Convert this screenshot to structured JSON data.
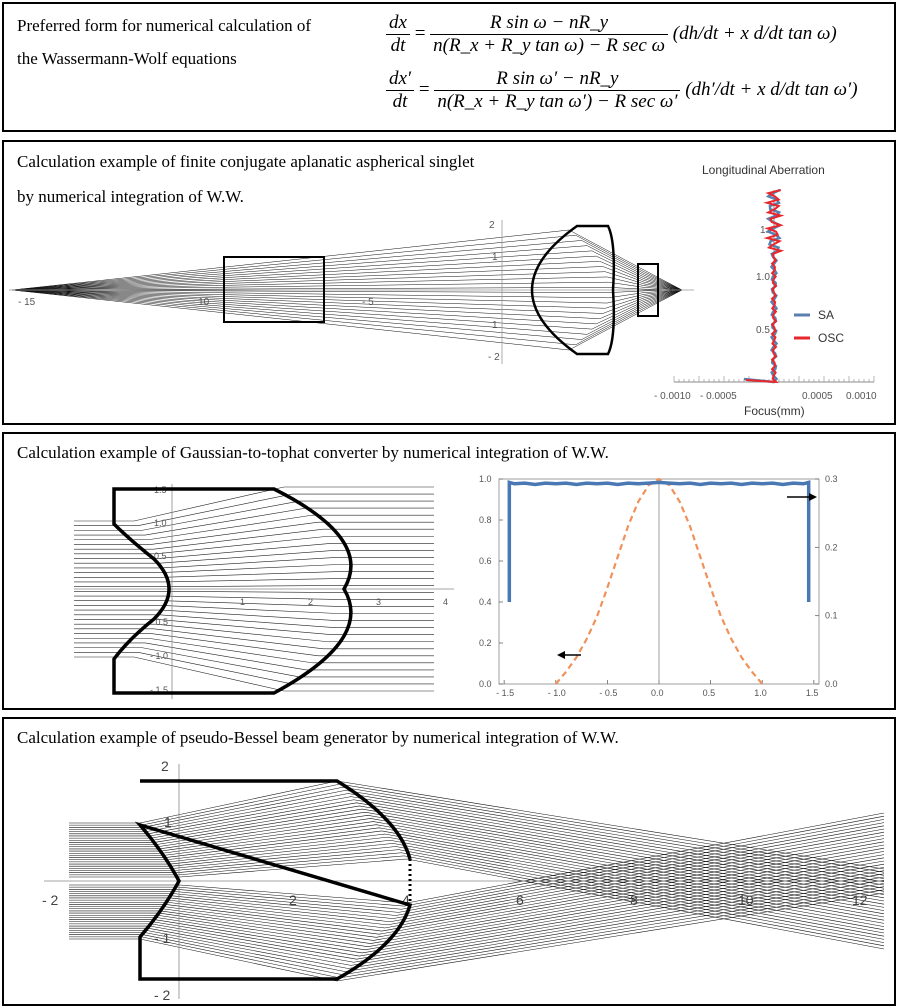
{
  "intro": {
    "line1": "Preferred form for numerical calculation of",
    "line2": "the Wassermann-Wolf equations"
  },
  "equations": {
    "eq1": {
      "lhs_num": "dx",
      "lhs_den": "dt",
      "rhs_num": "R sin ω − nR_y",
      "rhs_den": "n(R_x + R_y tan ω) − R sec ω",
      "paren": "(dh/dt + x d/dt tan ω)"
    },
    "eq2": {
      "lhs_num": "dx′",
      "lhs_den": "dt",
      "rhs_num": "R sin ω′ − nR_y",
      "rhs_den": "n(R_x + R_y tan ω′) − R sec ω′",
      "paren": "(dh′/dt + x d/dt tan ω′)"
    }
  },
  "panel_aplanatic": {
    "title_line1": "Calculation example of finite conjugate aplanatic aspherical singlet",
    "title_line2": "by numerical integration of W.W.",
    "x_ticks": [
      "- 15",
      "- 10",
      "- 5"
    ],
    "y_ticks": [
      "2",
      "1",
      "1",
      "- 2"
    ],
    "inset": {
      "title": "Longitudinal Aberration",
      "xlabel": "Focus(mm)",
      "x_ticks": [
        "- 0.0010",
        "- 0.0005",
        "0.0005",
        "0.0010"
      ],
      "y_ticks": [
        "1.",
        "1.0",
        "0.5"
      ],
      "legend": [
        {
          "label": "SA",
          "color": "#5b7fae"
        },
        {
          "label": "OSC",
          "color": "#e8262b"
        }
      ]
    }
  },
  "panel_tophat": {
    "title": "Calculation example of Gaussian-to-tophat converter by numerical integration of W.W.",
    "lens_x_ticks": [
      "1",
      "2",
      "3",
      "4"
    ],
    "lens_y_ticks": [
      "1.5",
      "1.0",
      "0.5",
      "- 0.5",
      "- 1.0",
      "- 1.5"
    ],
    "chart_data": {
      "type": "line",
      "x_ticks": [
        "- 1.5",
        "- 1.0",
        "- 0.5",
        "0.0",
        "0.5",
        "1.0",
        "1.5"
      ],
      "y_left_ticks": [
        "0.0",
        "0.2",
        "0.4",
        "0.6",
        "0.8",
        "1.0"
      ],
      "y_right_ticks": [
        "0.0",
        "0.1",
        "0.2",
        "0.3"
      ],
      "xlim": [
        -1.55,
        1.55
      ],
      "ylim_left": [
        0,
        1.0
      ],
      "ylim_right": [
        0,
        0.3
      ],
      "series": [
        {
          "axis": "right",
          "color": "#4a78b5",
          "style": "solid",
          "x": [
            -1.45,
            -1.45,
            -1.4,
            -1.3,
            -1.2,
            -1.1,
            -1.0,
            -0.9,
            -0.8,
            -0.7,
            -0.6,
            -0.5,
            -0.4,
            -0.3,
            -0.2,
            -0.1,
            0.0,
            0.1,
            0.2,
            0.3,
            0.4,
            0.5,
            0.6,
            0.7,
            0.8,
            0.9,
            1.0,
            1.1,
            1.2,
            1.3,
            1.4,
            1.45,
            1.45
          ],
          "y": [
            0.12,
            0.295,
            0.293,
            0.294,
            0.292,
            0.294,
            0.293,
            0.294,
            0.292,
            0.294,
            0.293,
            0.294,
            0.292,
            0.294,
            0.293,
            0.294,
            0.295,
            0.294,
            0.293,
            0.294,
            0.292,
            0.294,
            0.293,
            0.294,
            0.292,
            0.294,
            0.293,
            0.294,
            0.292,
            0.294,
            0.293,
            0.295,
            0.12
          ]
        },
        {
          "axis": "left",
          "color": "#f0915a",
          "style": "dashed",
          "x": [
            -1.0,
            -0.9,
            -0.8,
            -0.7,
            -0.6,
            -0.5,
            -0.4,
            -0.3,
            -0.2,
            -0.1,
            0.0,
            0.1,
            0.2,
            0.3,
            0.4,
            0.5,
            0.6,
            0.7,
            0.8,
            0.9,
            1.0
          ],
          "y": [
            0.0,
            0.06,
            0.13,
            0.22,
            0.33,
            0.47,
            0.62,
            0.77,
            0.89,
            0.97,
            1.0,
            0.97,
            0.89,
            0.77,
            0.62,
            0.47,
            0.33,
            0.22,
            0.13,
            0.06,
            0.0
          ]
        }
      ]
    }
  },
  "panel_bessel": {
    "title": "Calculation example of pseudo-Bessel beam generator by numerical integration of W.W.",
    "x_ticks": [
      "- 2",
      "2",
      "4",
      "6",
      "8",
      "10",
      "12"
    ],
    "y_ticks": [
      "2",
      "1",
      "- 1",
      "- 2"
    ]
  }
}
